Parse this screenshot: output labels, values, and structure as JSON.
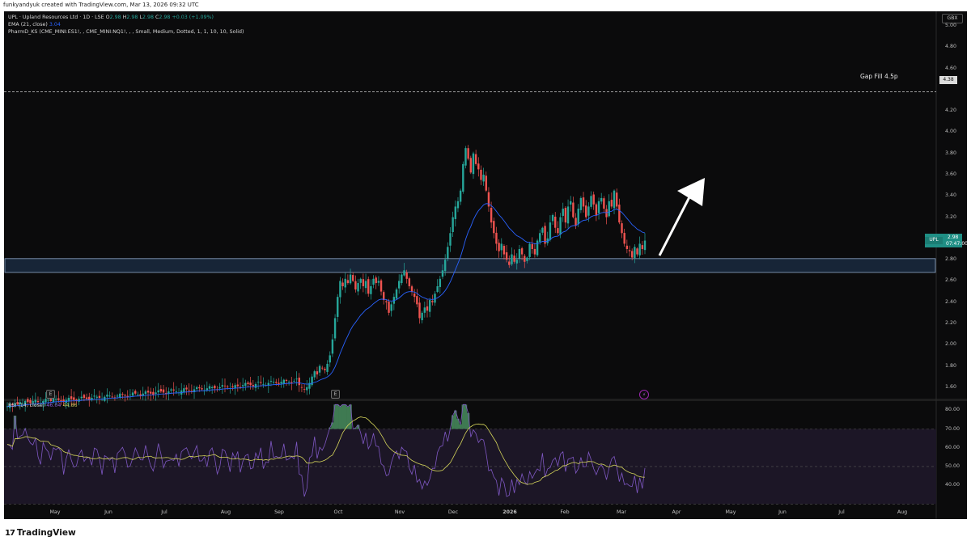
{
  "credit": "funkyandyuk created with TradingView.com, Mar 13, 2026 09:32 UTC",
  "legend": {
    "symbol_line": "UPL · Upland Resources Ltd · 1D · LSE",
    "open_label": "O",
    "open": "2.98",
    "high_label": "H",
    "high": "2.98",
    "low_label": "L",
    "low": "2.98",
    "close_label": "C",
    "close": "2.98",
    "change": "+0.03 (+1.09%)",
    "ema_label": "EMA (21, close)",
    "ema_value": "3.04",
    "indicator_line": "PharmD_KS (CME_MINI:ES1!, , CME_MINI:NQ1!, , , Small, Medium, Dotted, 1, 1, 10, 10, Solid)"
  },
  "rsi_legend": {
    "label": "RSI (14, close)",
    "rsi": "46.04",
    "ma": "44.86"
  },
  "annotation": {
    "gap_label": "Gap Fill 4.5p",
    "gap_level": 4.38
  },
  "price_axis": {
    "currency": "GBX",
    "ticks": [
      "5.00",
      "4.80",
      "4.60",
      "4.38",
      "4.20",
      "4.00",
      "3.80",
      "3.60",
      "3.40",
      "3.20",
      "3.00",
      "2.80",
      "2.60",
      "2.40",
      "2.20",
      "2.00",
      "1.80",
      "1.60"
    ],
    "tick_values": [
      5.0,
      4.8,
      4.6,
      4.38,
      4.2,
      4.0,
      3.8,
      3.6,
      3.4,
      3.2,
      3.0,
      2.8,
      2.6,
      2.4,
      2.2,
      2.0,
      1.8,
      1.6
    ],
    "last_symbol": "UPL",
    "last_price": "2.98",
    "countdown": "07:47:00"
  },
  "rsi_axis": {
    "ticks": [
      "80.00",
      "70.00",
      "60.00",
      "50.00",
      "40.00"
    ],
    "tick_values": [
      80,
      70,
      60,
      50,
      40
    ]
  },
  "time_axis": {
    "labels": [
      "May",
      "Jun",
      "Jul",
      "Aug",
      "Sep",
      "Oct",
      "Nov",
      "Dec",
      "2026",
      "Feb",
      "Mar",
      "Apr",
      "May",
      "Jun",
      "Jul",
      "Aug"
    ]
  },
  "markers": {
    "earnings": "E",
    "bolt": "⚡"
  },
  "support_zone": {
    "top": 2.81,
    "bottom": 2.68
  },
  "colors": {
    "up": "#26a69a",
    "down": "#ef5350",
    "ema": "#2962ff",
    "rsi": "#7e57c2",
    "rsi_ma": "#d4d45a",
    "zone_fill": "#1c2f45",
    "zone_border": "#8fa8c8"
  },
  "brand": "TradingView",
  "chart_data": {
    "type": "candlestick",
    "symbol": "UPL",
    "ylim": [
      1.5,
      5.0
    ],
    "series": [
      {
        "name": "EMA (21, close)",
        "values": "smoothed close"
      }
    ],
    "closes": [
      1.42,
      1.44,
      1.43,
      1.45,
      1.44,
      1.46,
      1.45,
      1.47,
      1.46,
      1.45,
      1.47,
      1.48,
      1.46,
      1.45,
      1.47,
      1.49,
      1.48,
      1.47,
      1.5,
      1.49,
      1.48,
      1.47,
      1.46,
      1.48,
      1.5,
      1.49,
      1.48,
      1.47,
      1.49,
      1.51,
      1.5,
      1.49,
      1.48,
      1.5,
      1.52,
      1.51,
      1.5,
      1.49,
      1.51,
      1.53,
      1.52,
      1.51,
      1.5,
      1.52,
      1.54,
      1.53,
      1.52,
      1.51,
      1.53,
      1.55,
      1.54,
      1.53,
      1.52,
      1.54,
      1.56,
      1.55,
      1.54,
      1.53,
      1.55,
      1.57,
      1.56,
      1.55,
      1.54,
      1.56,
      1.58,
      1.57,
      1.56,
      1.55,
      1.57,
      1.59,
      1.58,
      1.57,
      1.56,
      1.58,
      1.6,
      1.59,
      1.58,
      1.57,
      1.59,
      1.61,
      1.6,
      1.59,
      1.58,
      1.6,
      1.62,
      1.61,
      1.6,
      1.59,
      1.6,
      1.62,
      1.61,
      1.6,
      1.62,
      1.64,
      1.63,
      1.62,
      1.61,
      1.63,
      1.65,
      1.64,
      1.63,
      1.62,
      1.64,
      1.66,
      1.65,
      1.64,
      1.63,
      1.65,
      1.67,
      1.66,
      1.65,
      1.64,
      1.66,
      1.68,
      1.62,
      1.6,
      1.58,
      1.6,
      1.64,
      1.7,
      1.75,
      1.72,
      1.8,
      1.78,
      1.76,
      1.82,
      1.9,
      2.05,
      2.25,
      2.45,
      2.6,
      2.55,
      2.62,
      2.58,
      2.66,
      2.6,
      2.52,
      2.58,
      2.62,
      2.55,
      2.6,
      2.48,
      2.55,
      2.62,
      2.58,
      2.6,
      2.5,
      2.42,
      2.4,
      2.3,
      2.38,
      2.45,
      2.52,
      2.6,
      2.66,
      2.7,
      2.62,
      2.55,
      2.5,
      2.45,
      2.38,
      2.25,
      2.3,
      2.35,
      2.32,
      2.42,
      2.4,
      2.48,
      2.55,
      2.62,
      2.7,
      2.8,
      2.92,
      3.05,
      3.2,
      3.3,
      3.35,
      3.45,
      3.7,
      3.85,
      3.75,
      3.62,
      3.8,
      3.7,
      3.65,
      3.55,
      3.6,
      3.45,
      3.3,
      3.15,
      3.05,
      2.95,
      2.88,
      2.95,
      2.85,
      2.8,
      2.75,
      2.85,
      2.78,
      2.8,
      2.9,
      2.85,
      2.78,
      2.82,
      2.95,
      2.9,
      2.85,
      2.98,
      3.05,
      3.1,
      2.95,
      3.0,
      3.15,
      3.22,
      3.1,
      3.05,
      3.2,
      3.28,
      3.15,
      3.3,
      3.35,
      3.2,
      3.12,
      3.28,
      3.38,
      3.3,
      3.2,
      3.3,
      3.4,
      3.32,
      3.22,
      3.35,
      3.38,
      3.28,
      3.2,
      3.35,
      3.3,
      3.45,
      3.3,
      3.15,
      3.05,
      2.95,
      2.9,
      2.88,
      2.82,
      2.92,
      2.85,
      2.95,
      2.9,
      2.98
    ]
  }
}
